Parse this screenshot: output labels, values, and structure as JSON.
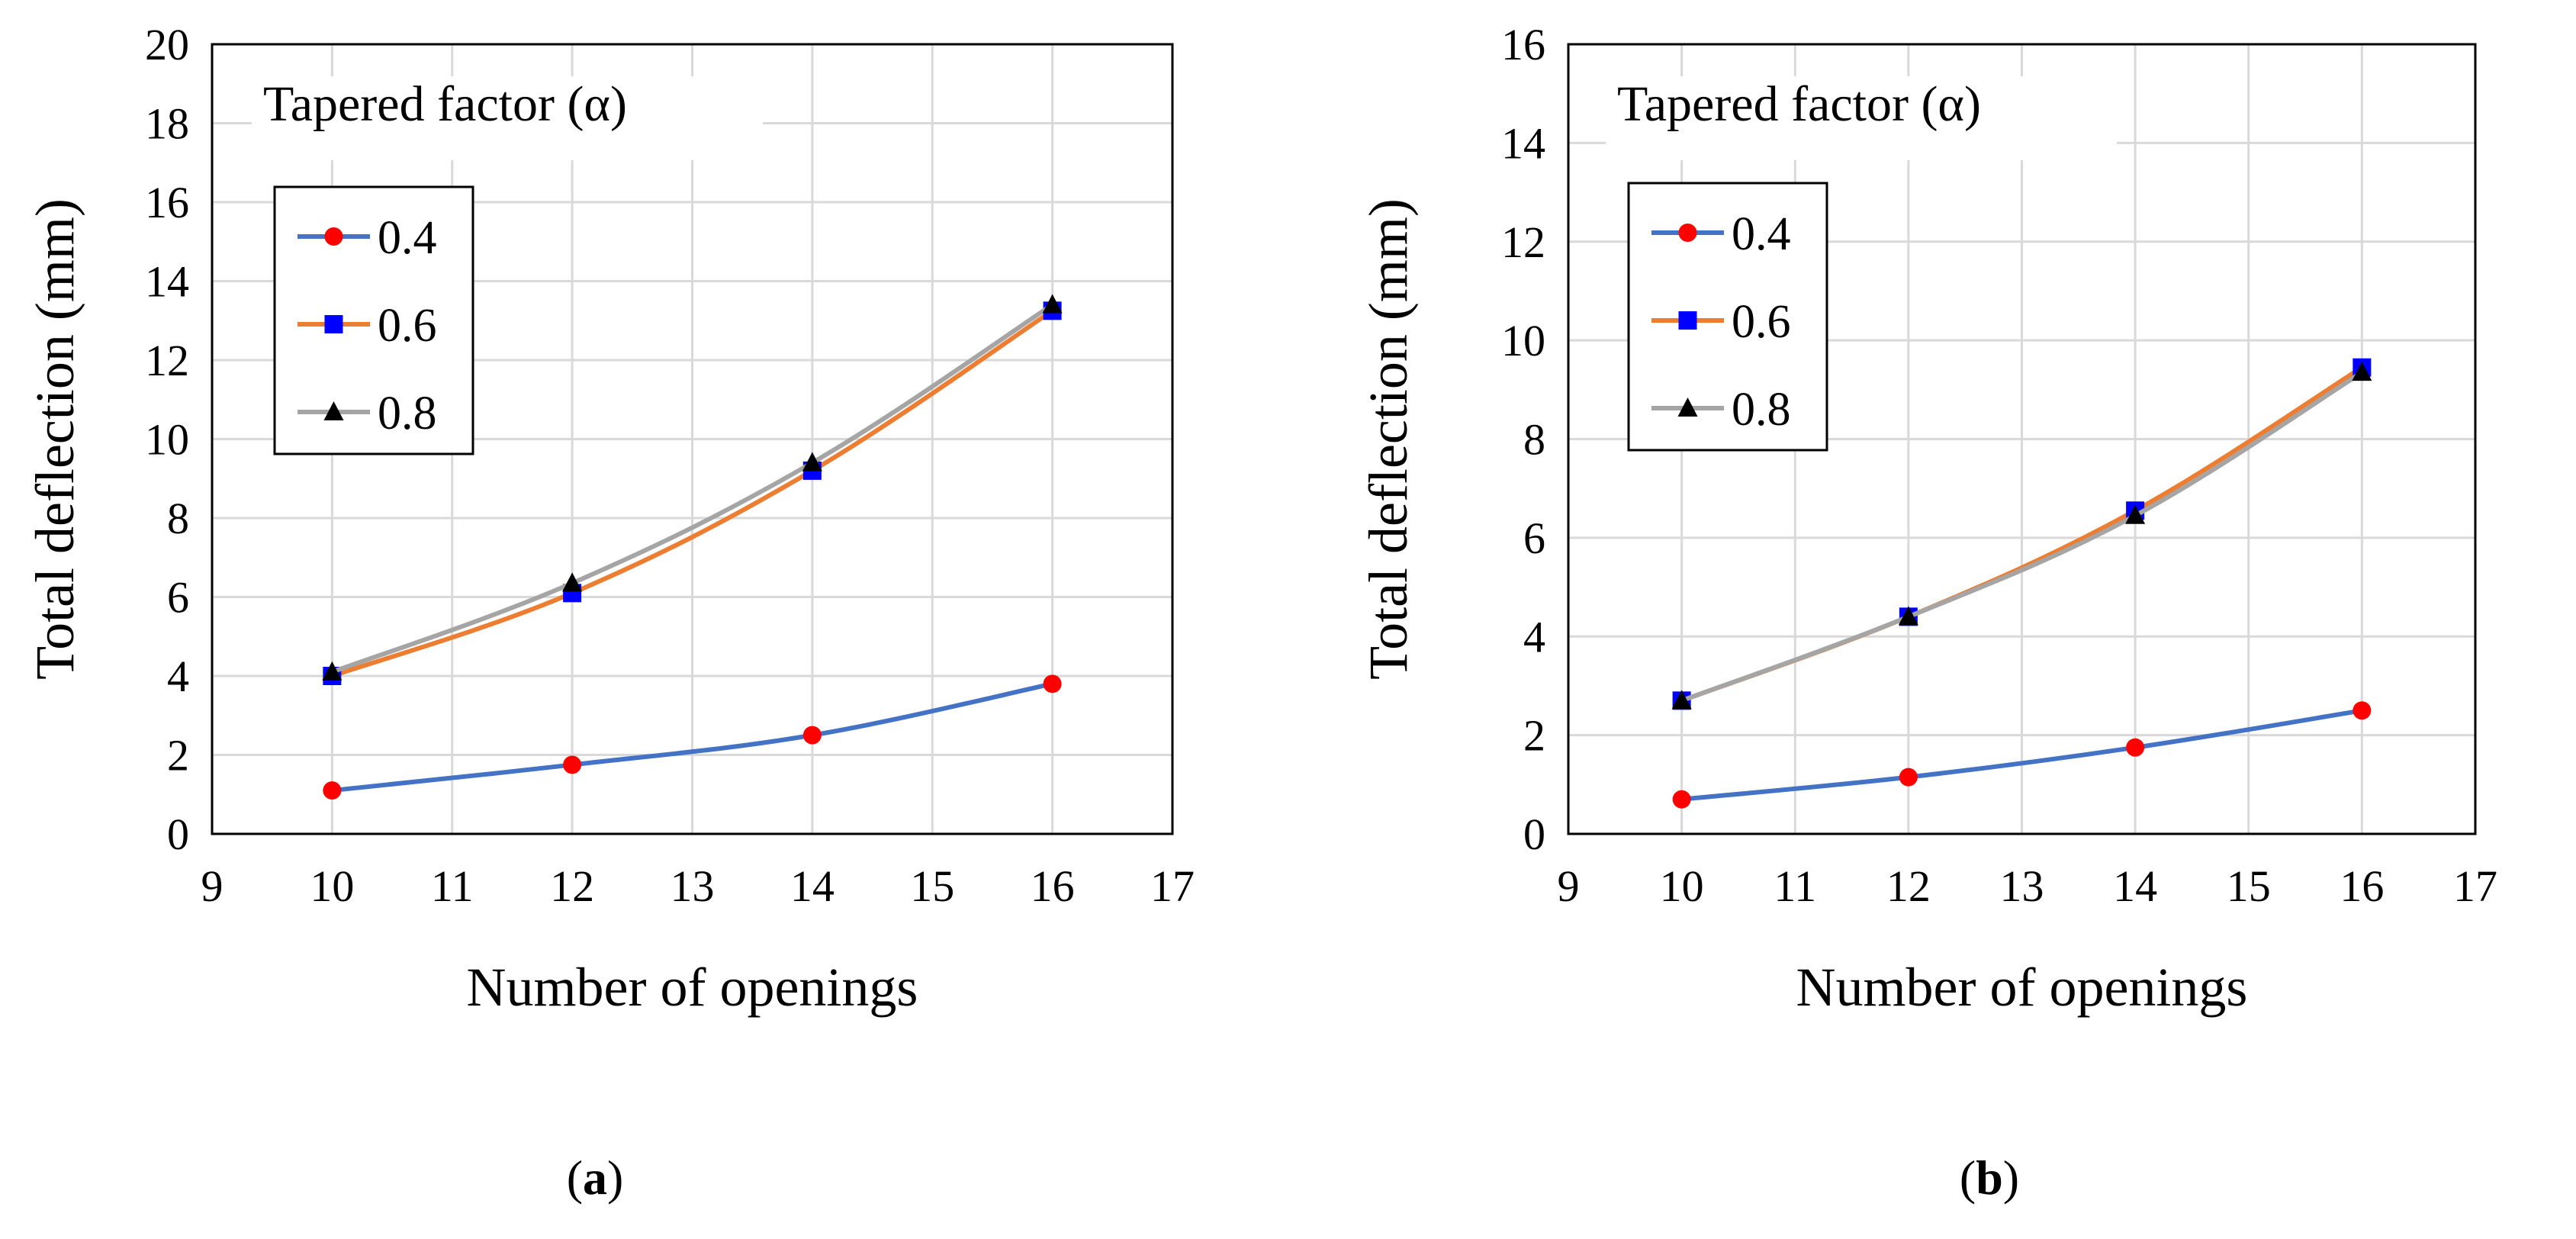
{
  "chart_data": [
    {
      "type": "line",
      "panel_label": "a",
      "xlabel": "Number of openings",
      "ylabel": "Total deflection (mm)",
      "xlim": [
        9,
        17
      ],
      "ylim": [
        0,
        20
      ],
      "xticks": [
        9,
        10,
        11,
        12,
        13,
        14,
        15,
        16,
        17
      ],
      "yticks": [
        0,
        2,
        4,
        6,
        8,
        10,
        12,
        14,
        16,
        18,
        20
      ],
      "grid": true,
      "legend_title": "Tapered factor (α)",
      "legend_position": "top-left",
      "series": [
        {
          "name": "0.4",
          "x": [
            10,
            12,
            14,
            16
          ],
          "values": [
            1.1,
            1.75,
            2.5,
            3.8
          ],
          "line_color": "#4472C4",
          "marker": "circle",
          "marker_color": "#FF0000"
        },
        {
          "name": "0.6",
          "x": [
            10,
            12,
            14,
            16
          ],
          "values": [
            4.0,
            6.1,
            9.2,
            13.25
          ],
          "line_color": "#ED7D31",
          "marker": "square",
          "marker_color": "#0000FF"
        },
        {
          "name": "0.8",
          "x": [
            10,
            12,
            14,
            16
          ],
          "values": [
            4.1,
            6.35,
            9.4,
            13.4
          ],
          "line_color": "#A5A5A5",
          "marker": "triangle",
          "marker_color": "#000000"
        }
      ]
    },
    {
      "type": "line",
      "panel_label": "b",
      "xlabel": "Number of openings",
      "ylabel": "Total deflection (mm)",
      "xlim": [
        9,
        17
      ],
      "ylim": [
        0,
        16
      ],
      "xticks": [
        9,
        10,
        11,
        12,
        13,
        14,
        15,
        16,
        17
      ],
      "yticks": [
        0,
        2,
        4,
        6,
        8,
        10,
        12,
        14,
        16
      ],
      "grid": true,
      "legend_title": "Tapered factor (α)",
      "legend_position": "top-left",
      "series": [
        {
          "name": "0.4",
          "x": [
            10,
            12,
            14,
            16
          ],
          "values": [
            0.7,
            1.15,
            1.75,
            2.5
          ],
          "line_color": "#4472C4",
          "marker": "circle",
          "marker_color": "#FF0000"
        },
        {
          "name": "0.6",
          "x": [
            10,
            12,
            14,
            16
          ],
          "values": [
            2.7,
            4.4,
            6.55,
            9.45
          ],
          "line_color": "#ED7D31",
          "marker": "square",
          "marker_color": "#0000FF"
        },
        {
          "name": "0.8",
          "x": [
            10,
            12,
            14,
            16
          ],
          "values": [
            2.7,
            4.4,
            6.45,
            9.35
          ],
          "line_color": "#A5A5A5",
          "marker": "triangle",
          "marker_color": "#000000"
        }
      ]
    }
  ]
}
